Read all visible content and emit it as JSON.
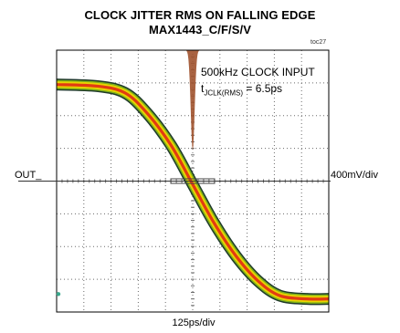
{
  "chart_data": {
    "type": "line",
    "title": "CLOCK JITTER RMS ON FALLING EDGE",
    "subtitle": "MAX1443_C/F/S/V",
    "figure_id": "toc27",
    "annotation_line1": "500kHz CLOCK INPUT",
    "annotation_line2_prefix": "t",
    "annotation_line2_sub": "JCLK(RMS)",
    "annotation_line2_suffix": " = 6.5ps",
    "trace_label": "OUT_",
    "ylabel": "400mV/div",
    "xlabel": "125ps/div",
    "grid": true,
    "x_divisions": 10,
    "y_divisions": 8,
    "trace_divisions": {
      "x": [
        0,
        1.5,
        2.5,
        3.3,
        4.2,
        5,
        5.8,
        6.6,
        7.4,
        8.2,
        9.2,
        10
      ],
      "y": [
        6.95,
        6.9,
        6.7,
        6.1,
        5.1,
        3.9,
        2.7,
        1.7,
        0.95,
        0.5,
        0.4,
        0.4
      ]
    }
  },
  "colors": {
    "outer": "#1f3a2a",
    "mid": "#7fb21a",
    "band": "#e8d400",
    "core": "#e23b12",
    "histogram": "#a0522d",
    "grid": "#6b6b6b",
    "frame": "#000000"
  }
}
